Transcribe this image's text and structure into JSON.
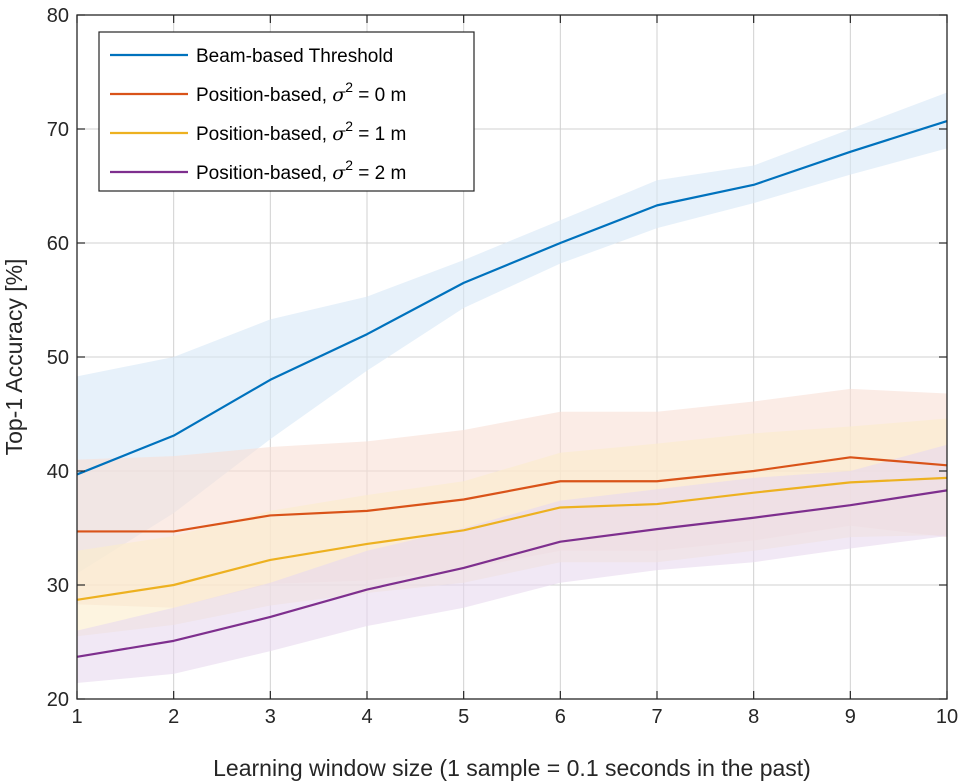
{
  "chart_data": {
    "type": "line",
    "title": "",
    "xlabel": "Learning window size (1 sample = 0.1 seconds in the past)",
    "ylabel": "Top-1 Accuracy [%]",
    "xlim": [
      1,
      10
    ],
    "ylim": [
      20,
      80
    ],
    "xticks": [
      1,
      2,
      3,
      4,
      5,
      6,
      7,
      8,
      9,
      10
    ],
    "yticks": [
      20,
      30,
      40,
      50,
      60,
      70,
      80
    ],
    "grid": true,
    "legend_position": "top-left",
    "x": [
      1,
      2,
      3,
      4,
      5,
      6,
      7,
      8,
      9,
      10
    ],
    "series": [
      {
        "name": "Beam-based Threshold",
        "color": "#0072BD",
        "fill_color": "#d7e8f6",
        "values": [
          39.7,
          43.1,
          48.0,
          52.0,
          56.5,
          60.0,
          63.3,
          65.1,
          68.0,
          70.7
        ],
        "upper": [
          48.3,
          50.0,
          53.3,
          55.3,
          58.5,
          62.0,
          65.5,
          66.8,
          70.0,
          73.2
        ],
        "lower": [
          31.0,
          36.3,
          42.8,
          48.8,
          54.3,
          58.2,
          61.3,
          63.5,
          66.0,
          68.3
        ]
      },
      {
        "name": "Position-based, σ2 = 0 m",
        "label_parts": [
          "Position-based, ",
          "σ",
          "2",
          " = 0 m"
        ],
        "color": "#D95319",
        "fill_color": "#f9e0d6",
        "values": [
          34.7,
          34.7,
          36.1,
          36.5,
          37.5,
          39.1,
          39.1,
          40.0,
          41.2,
          40.5
        ],
        "upper": [
          41.0,
          41.3,
          42.1,
          42.6,
          43.6,
          45.2,
          45.2,
          46.1,
          47.2,
          46.8
        ],
        "lower": [
          28.3,
          28.0,
          30.1,
          30.4,
          31.4,
          33.0,
          33.0,
          33.9,
          35.2,
          34.2
        ]
      },
      {
        "name": "Position-based, σ2 = 1 m",
        "label_parts": [
          "Position-based, ",
          "σ",
          "2",
          " = 1 m"
        ],
        "color": "#EDB120",
        "fill_color": "#fbeccb",
        "values": [
          28.7,
          30.0,
          32.2,
          33.6,
          34.8,
          36.8,
          37.1,
          38.1,
          39.0,
          39.4
        ],
        "upper": [
          33.0,
          34.3,
          36.5,
          37.9,
          39.1,
          41.6,
          42.4,
          43.3,
          43.9,
          44.6
        ],
        "lower": [
          25.5,
          26.5,
          28.2,
          29.3,
          30.2,
          32.0,
          32.0,
          33.0,
          34.2,
          34.4
        ]
      },
      {
        "name": "Position-based, σ2 = 2 m",
        "label_parts": [
          "Position-based, ",
          "σ",
          "2",
          " = 2 m"
        ],
        "color": "#7E2F8E",
        "fill_color": "#e7d9ee",
        "values": [
          23.7,
          25.1,
          27.2,
          29.6,
          31.5,
          33.8,
          34.9,
          35.9,
          37.0,
          38.3
        ],
        "upper": [
          26.0,
          28.0,
          30.2,
          33.0,
          35.0,
          37.4,
          38.4,
          39.4,
          40.0,
          42.3
        ],
        "lower": [
          21.4,
          22.2,
          24.2,
          26.4,
          28.0,
          30.2,
          31.3,
          32.0,
          33.2,
          34.3
        ]
      }
    ]
  }
}
